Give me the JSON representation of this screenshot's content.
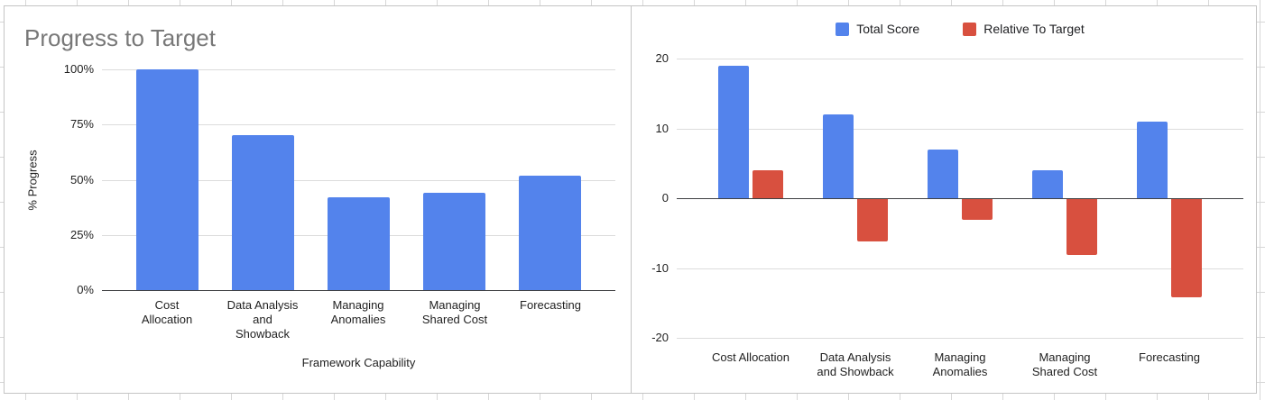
{
  "colors": {
    "blue": "#5383ec",
    "red": "#d8503f",
    "gridline": "#dcdcdc",
    "axis_line": "#3f4043",
    "title_gray": "#787878",
    "text_dark": "#1f1f1f",
    "panel_border": "#c4c4c4",
    "sheet_line": "#d7d7d7"
  },
  "chart_data": [
    {
      "type": "bar",
      "title": "Progress to Target",
      "xlabel": "Framework Capability",
      "ylabel": "% Progress",
      "categories": [
        "Cost Allocation",
        "Data Analysis and Showback",
        "Managing Anomalies",
        "Managing Shared Cost",
        "Forecasting"
      ],
      "category_lines": [
        [
          "Cost",
          "Allocation"
        ],
        [
          "Data Analysis",
          "and",
          "Showback"
        ],
        [
          "Managing",
          "Anomalies"
        ],
        [
          "Managing",
          "Shared Cost"
        ],
        [
          "Forecasting"
        ]
      ],
      "series": [
        {
          "name": "% Progress",
          "color": "blue",
          "values": [
            100,
            70,
            42,
            44,
            52
          ]
        }
      ],
      "ylim": [
        0,
        100
      ],
      "ytick_values": [
        100,
        75,
        50,
        25,
        0
      ],
      "ytick_labels": [
        "100%",
        "75%",
        "50%",
        "25%",
        "0%"
      ],
      "grid": true,
      "legend_position": "none"
    },
    {
      "type": "bar",
      "title": "",
      "xlabel": "",
      "ylabel": "",
      "categories": [
        "Cost Allocation",
        "Data Analysis and Showback",
        "Managing Anomalies",
        "Managing Shared Cost",
        "Forecasting"
      ],
      "category_lines": [
        [
          "Cost Allocation"
        ],
        [
          "Data Analysis",
          "and Showback"
        ],
        [
          "Managing",
          "Anomalies"
        ],
        [
          "Managing",
          "Shared Cost"
        ],
        [
          "Forecasting"
        ]
      ],
      "series": [
        {
          "name": "Total Score",
          "color": "blue",
          "values": [
            19,
            12,
            7,
            4,
            11
          ]
        },
        {
          "name": "Relative To Target",
          "color": "red",
          "values": [
            4,
            -6,
            -3,
            -8,
            -14
          ]
        }
      ],
      "ylim": [
        -20,
        20
      ],
      "ytick_values": [
        20,
        10,
        0,
        -10,
        -20
      ],
      "ytick_labels": [
        "20",
        "10",
        "0",
        "-10",
        "-20"
      ],
      "grid": true,
      "legend_position": "top"
    }
  ]
}
